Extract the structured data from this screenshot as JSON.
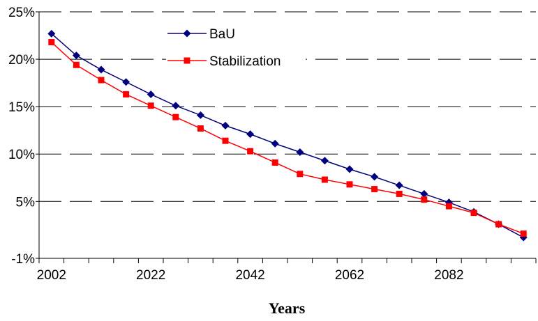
{
  "chart_data": {
    "type": "line",
    "title": "",
    "xlabel": "Years",
    "ylabel": "",
    "x": [
      2002,
      2007,
      2012,
      2017,
      2022,
      2027,
      2032,
      2037,
      2042,
      2047,
      2052,
      2057,
      2062,
      2067,
      2072,
      2077,
      2082,
      2087,
      2092,
      2097
    ],
    "x_tick_labels": [
      "2002",
      "2022",
      "2042",
      "2062",
      "2082"
    ],
    "y_tick_labels": [
      "-1%",
      "5%",
      "10%",
      "15%",
      "20%",
      "25%"
    ],
    "y_ticks": [
      -1,
      5,
      10,
      15,
      20,
      25
    ],
    "ylim": [
      -1,
      25
    ],
    "grid": "horizontal dashed",
    "legend_position": "top-left",
    "series": [
      {
        "name": "BaU",
        "color": "#00007f",
        "marker": "diamond",
        "values": [
          22.7,
          20.4,
          18.9,
          17.6,
          16.3,
          15.1,
          14.1,
          13.0,
          12.1,
          11.1,
          10.2,
          9.3,
          8.4,
          7.6,
          6.7,
          5.8,
          4.9,
          3.9,
          2.6,
          1.2
        ]
      },
      {
        "name": "Stabilization",
        "color": "#ff0000",
        "marker": "square",
        "values": [
          21.8,
          19.4,
          17.8,
          16.3,
          15.1,
          13.9,
          12.7,
          11.4,
          10.3,
          9.1,
          7.9,
          7.3,
          6.8,
          6.3,
          5.8,
          5.2,
          4.5,
          3.8,
          2.6,
          1.6
        ]
      }
    ]
  }
}
